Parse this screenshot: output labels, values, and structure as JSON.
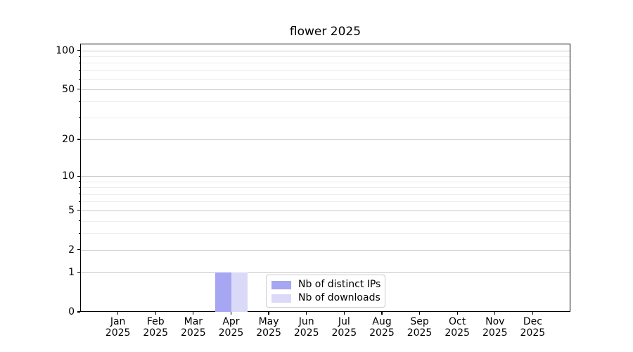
{
  "chart_data": {
    "type": "bar",
    "title": "flower 2025",
    "categories": [
      "Jan",
      "Feb",
      "Mar",
      "Apr",
      "May",
      "Jun",
      "Jul",
      "Aug",
      "Sep",
      "Oct",
      "Nov",
      "Dec"
    ],
    "category_year": "2025",
    "series": [
      {
        "name": "Nb of distinct IPs",
        "color": "#a6a6f2",
        "values": [
          0,
          0,
          0,
          1,
          0,
          0,
          0,
          0,
          0,
          0,
          0,
          0
        ]
      },
      {
        "name": "Nb of downloads",
        "color": "#dadaf8",
        "values": [
          0,
          0,
          0,
          1,
          0,
          0,
          0,
          0,
          0,
          0,
          0,
          0
        ]
      }
    ],
    "y_axis": {
      "scale": "log1p",
      "major_ticks": [
        0,
        1,
        2,
        5,
        10,
        20,
        50,
        100
      ],
      "major_tick_labels": [
        "0",
        "1",
        "2",
        "5",
        "10",
        "20",
        "50",
        "100"
      ],
      "minor_ticks": [
        3,
        4,
        6,
        7,
        8,
        9,
        30,
        40,
        60,
        70,
        80,
        90
      ],
      "max": 113
    },
    "legend": {
      "location": "lower center",
      "entries": [
        "Nb of distinct IPs",
        "Nb of downloads"
      ]
    },
    "grid": {
      "horizontal_major": true,
      "horizontal_minor": true,
      "vertical": false
    },
    "colors": {
      "axis": "#000000",
      "grid_major": "#c9c9c9",
      "grid_minor": "#ececec",
      "background": "#ffffff"
    }
  }
}
